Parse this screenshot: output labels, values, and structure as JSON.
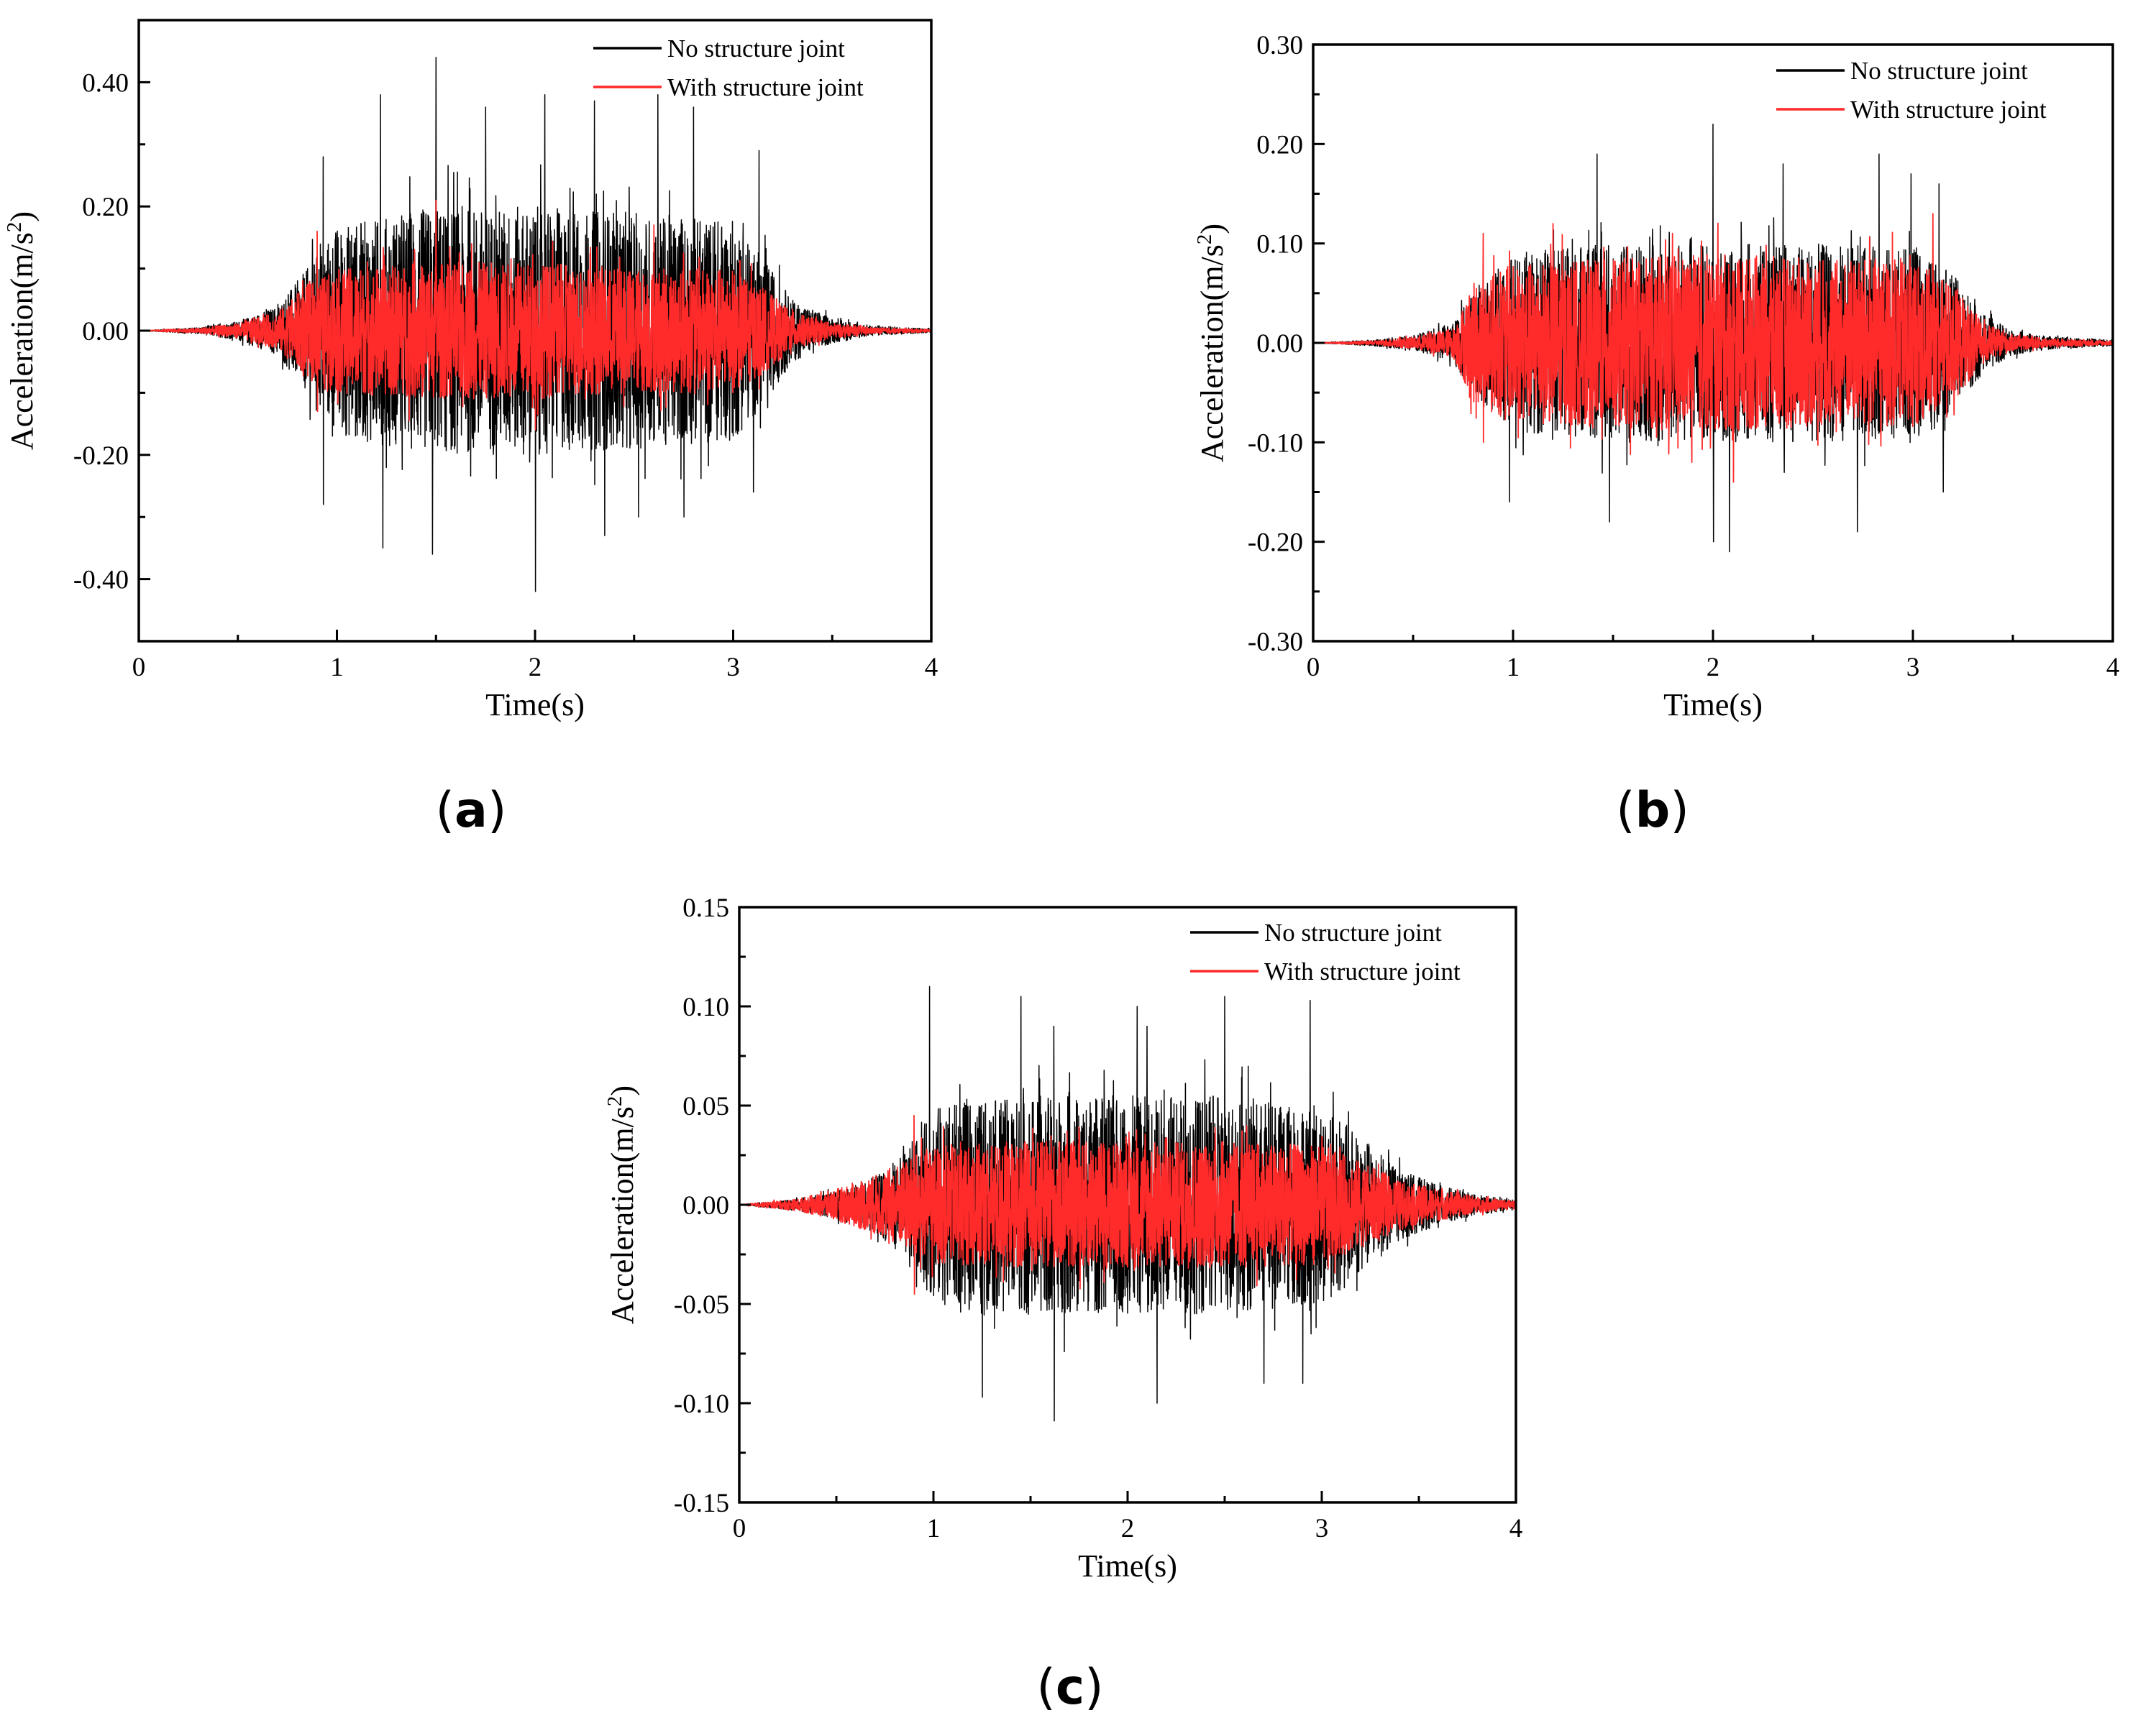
{
  "figure": {
    "captions": [
      "(a)",
      "(b)",
      "(c)"
    ],
    "caption_letters": [
      "a",
      "b",
      "c"
    ]
  },
  "colors": {
    "no_joint": "#000000",
    "with_joint": "#ff2a2a",
    "axis": "#000000"
  },
  "chart_data": [
    {
      "type": "line",
      "panel": "a",
      "xlabel": "Time(s)",
      "ylabel": "Acceleration(m/s2)",
      "ylabel_main": "Acceleration(m/s",
      "ylabel_sup": "2",
      "ylabel_end": ")",
      "xlim": [
        0,
        4
      ],
      "ylim": [
        -0.5,
        0.5
      ],
      "xticks": [
        0,
        1,
        2,
        3,
        4
      ],
      "xtick_labels": [
        "0",
        "1",
        "2",
        "3",
        "4"
      ],
      "yticks": [
        -0.4,
        -0.2,
        0.0,
        0.2,
        0.4
      ],
      "ytick_labels": [
        "-0.40",
        "-0.20",
        "0.00",
        "0.20",
        "0.40"
      ],
      "grid": false,
      "legend_position": "top-right",
      "series": [
        {
          "name": "No structure joint",
          "color": "#000000",
          "signal": "dense oscillatory acceleration record, envelope rising from ~0.4 s, strong between 0.85 s and 3.15 s, decaying to zero by ~3.7 s",
          "envelope": {
            "t": [
              0,
              0.3,
              0.5,
              0.7,
              0.85,
              1.0,
              1.5,
              2.0,
              2.5,
              3.0,
              3.15,
              3.3,
              3.5,
              3.7,
              4.0
            ],
            "amp": [
              0.0,
              0.005,
              0.015,
              0.04,
              0.1,
              0.17,
              0.2,
              0.2,
              0.19,
              0.18,
              0.12,
              0.05,
              0.02,
              0.008,
              0.003
            ]
          },
          "peaks": {
            "t": [
              0.93,
              1.22,
              1.5,
              1.75,
              2.05,
              2.3,
              2.62,
              2.8,
              3.13
            ],
            "max": [
              0.28,
              0.38,
              0.44,
              0.36,
              0.38,
              0.37,
              0.38,
              0.36,
              0.29
            ]
          },
          "troughs": {
            "t": [
              0.93,
              1.23,
              1.48,
              2.0,
              2.35,
              2.52,
              2.75,
              3.1
            ],
            "min": [
              -0.28,
              -0.35,
              -0.36,
              -0.42,
              -0.33,
              -0.3,
              -0.3,
              -0.26
            ]
          }
        },
        {
          "name": "With structure joint",
          "color": "#ff2a2a",
          "signal": "same record with reduced amplitude",
          "envelope": {
            "t": [
              0,
              0.3,
              0.5,
              0.7,
              0.85,
              1.0,
              1.5,
              2.0,
              2.5,
              3.0,
              3.15,
              3.3,
              3.5,
              3.7,
              4.0
            ],
            "amp": [
              0.0,
              0.004,
              0.012,
              0.03,
              0.075,
              0.1,
              0.11,
              0.11,
              0.1,
              0.1,
              0.07,
              0.03,
              0.012,
              0.005,
              0.002
            ]
          },
          "peaks": {
            "t": [
              0.9,
              1.5,
              1.68,
              2.6
            ],
            "max": [
              0.16,
              0.21,
              0.14,
              0.17
            ]
          },
          "troughs": {
            "t": [
              0.9,
              2.0
            ],
            "min": [
              -0.13,
              -0.16
            ]
          }
        }
      ]
    },
    {
      "type": "line",
      "panel": "b",
      "xlabel": "Time(s)",
      "ylabel": "Acceleration(m/s2)",
      "ylabel_main": "Acceleration(m/s",
      "ylabel_sup": "2",
      "ylabel_end": ")",
      "xlim": [
        0,
        4
      ],
      "ylim": [
        -0.3,
        0.3
      ],
      "xticks": [
        0,
        1,
        2,
        3,
        4
      ],
      "xtick_labels": [
        "0",
        "1",
        "2",
        "3",
        "4"
      ],
      "yticks": [
        -0.3,
        -0.2,
        -0.1,
        0.0,
        0.1,
        0.2,
        0.3
      ],
      "ytick_labels": [
        "-0.30",
        "-0.20",
        "-0.10",
        "0.00",
        "0.10",
        "0.20",
        "0.30"
      ],
      "grid": false,
      "legend_position": "top-right",
      "series": [
        {
          "name": "No structure joint",
          "color": "#000000",
          "signal": "dense oscillatory acceleration record, strong between 0.8 s and 3.2 s",
          "envelope": {
            "t": [
              0,
              0.3,
              0.5,
              0.7,
              0.8,
              1.0,
              1.5,
              2.0,
              2.5,
              3.0,
              3.2,
              3.35,
              3.5,
              3.7,
              4.0
            ],
            "amp": [
              0.0,
              0.003,
              0.008,
              0.02,
              0.05,
              0.09,
              0.1,
              0.1,
              0.1,
              0.095,
              0.07,
              0.03,
              0.012,
              0.006,
              0.003
            ]
          },
          "peaks": {
            "t": [
              1.42,
              2.0,
              2.35,
              2.83,
              2.99,
              3.13
            ],
            "max": [
              0.19,
              0.22,
              0.18,
              0.19,
              0.17,
              0.16
            ]
          },
          "troughs": {
            "t": [
              0.98,
              1.48,
              2.0,
              2.08,
              2.72,
              3.15
            ],
            "min": [
              -0.16,
              -0.18,
              -0.2,
              -0.21,
              -0.19,
              -0.15
            ]
          }
        },
        {
          "name": "With structure joint",
          "color": "#ff2a2a",
          "signal": "same record with similar amplitude",
          "envelope": {
            "t": [
              0,
              0.3,
              0.5,
              0.7,
              0.8,
              1.0,
              1.5,
              2.0,
              2.5,
              3.0,
              3.2,
              3.35,
              3.5,
              3.7,
              4.0
            ],
            "amp": [
              0.0,
              0.002,
              0.006,
              0.015,
              0.06,
              0.08,
              0.085,
              0.09,
              0.085,
              0.085,
              0.06,
              0.02,
              0.008,
              0.004,
              0.002
            ]
          },
          "peaks": {
            "t": [
              0.85,
              1.2,
              3.1
            ],
            "max": [
              0.11,
              0.12,
              0.13
            ]
          },
          "troughs": {
            "t": [
              0.85,
              2.1
            ],
            "min": [
              -0.1,
              -0.14
            ]
          }
        }
      ]
    },
    {
      "type": "line",
      "panel": "c",
      "xlabel": "Time(s)",
      "ylabel": "Acceleration(m/s2)",
      "ylabel_main": "Acceleration(m/s",
      "ylabel_sup": "2",
      "ylabel_end": ")",
      "xlim": [
        0,
        4
      ],
      "ylim": [
        -0.15,
        0.15
      ],
      "xticks": [
        0,
        1,
        2,
        3,
        4
      ],
      "xtick_labels": [
        "0",
        "1",
        "2",
        "3",
        "4"
      ],
      "yticks": [
        -0.15,
        -0.1,
        -0.05,
        0.0,
        0.05,
        0.1,
        0.15
      ],
      "ytick_labels": [
        "-0.15",
        "-0.10",
        "-0.05",
        "0.00",
        "0.05",
        "0.10",
        "0.15"
      ],
      "grid": false,
      "legend_position": "top-right",
      "series": [
        {
          "name": "No structure joint",
          "color": "#000000",
          "signal": "dense oscillatory acceleration record, strong between 0.9 s and 3.3 s",
          "envelope": {
            "t": [
              0,
              0.3,
              0.5,
              0.7,
              0.9,
              1.0,
              1.5,
              2.0,
              2.5,
              3.0,
              3.2,
              3.4,
              3.6,
              3.8,
              4.0
            ],
            "amp": [
              0.0,
              0.003,
              0.007,
              0.014,
              0.03,
              0.05,
              0.055,
              0.055,
              0.055,
              0.05,
              0.035,
              0.018,
              0.01,
              0.005,
              0.002
            ]
          },
          "peaks": {
            "t": [
              0.98,
              1.45,
              1.62,
              2.05,
              2.1,
              2.5,
              2.94
            ],
            "max": [
              0.11,
              0.105,
              0.09,
              0.1,
              0.09,
              0.105,
              0.103
            ]
          },
          "troughs": {
            "t": [
              1.25,
              1.62,
              2.15,
              2.7,
              2.9
            ],
            "min": [
              -0.097,
              -0.109,
              -0.1,
              -0.09,
              -0.09
            ]
          }
        },
        {
          "name": "With structure joint",
          "color": "#ff2a2a",
          "signal": "same record with reduced amplitude",
          "envelope": {
            "t": [
              0,
              0.3,
              0.5,
              0.7,
              0.9,
              1.0,
              1.5,
              2.0,
              2.5,
              3.0,
              3.2,
              3.4,
              3.6,
              3.8,
              4.0
            ],
            "amp": [
              0.0,
              0.003,
              0.008,
              0.015,
              0.025,
              0.03,
              0.032,
              0.032,
              0.032,
              0.03,
              0.022,
              0.012,
              0.008,
              0.004,
              0.002
            ]
          },
          "peaks": {
            "t": [
              0.9
            ],
            "max": [
              0.045
            ]
          },
          "troughs": {
            "t": [
              0.9
            ],
            "min": [
              -0.045
            ]
          }
        }
      ]
    }
  ]
}
